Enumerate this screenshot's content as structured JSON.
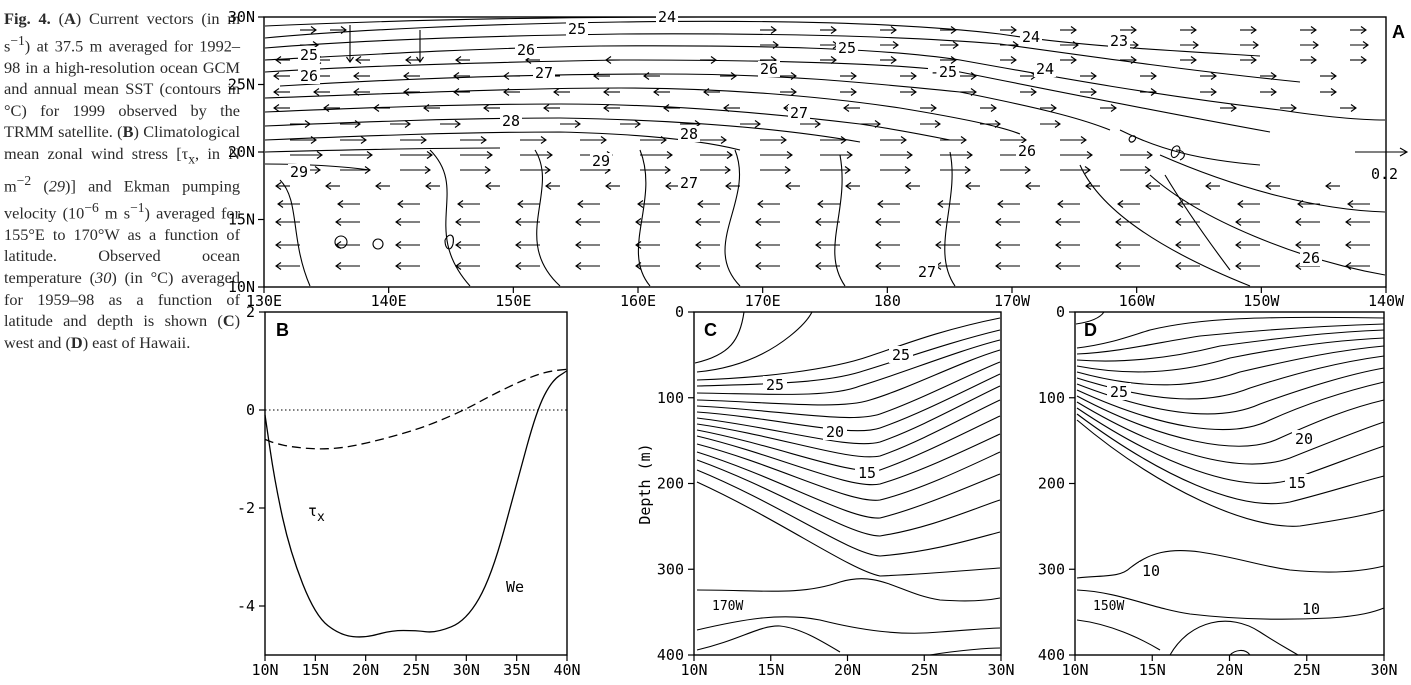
{
  "caption": {
    "fig": "Fig. 4.",
    "p1": " (",
    "A": "A",
    "p2": ") Current vectors (in m s",
    "sup1": "−1",
    "p3": ") at 37.5 m averaged for 1992–98 in a high-resolution ocean GCM and annual mean SST (contours in °C) for 1999 observed by the TRMM satellite. (",
    "B": "B",
    "p4": ") Climatological mean zonal wind stress [τ",
    "sub_x": "x",
    "p5": ", in N m",
    "sup2": "−2",
    "p6": " (",
    "ref29": "29",
    "p7": ")] and Ekman pumping velocity (10",
    "sup3": "−6",
    "p8": " m s",
    "sup4": "−1",
    "p9": ") averaged for 155°E to 170°W as a function of latitude. Observed ocean temperature (",
    "ref30": "30",
    "p10": ") (in °C) averaged for 1959–98 as a function of latitude and depth is shown (",
    "C": "C",
    "p11": ") west and (",
    "D": "D",
    "p12": ") east of Hawaii."
  },
  "panelA": {
    "label": "A",
    "yticks": [
      "30N",
      "25N",
      "20N",
      "15N",
      "10N"
    ],
    "xticks": [
      "130E",
      "140E",
      "150E",
      "160E",
      "170E",
      "180",
      "170W",
      "160W",
      "150W",
      "140W"
    ],
    "scale_label": "0.2",
    "contour_labels": [
      "24",
      "25",
      "26",
      "27",
      "25",
      "24",
      "23",
      "25",
      "26",
      "26",
      "-25",
      "24",
      "27",
      "28",
      "27",
      "28",
      "26",
      "29",
      "29",
      "26",
      "27"
    ]
  },
  "panelB": {
    "label": "B",
    "yticks": [
      "2",
      "0",
      "-2",
      "-4"
    ],
    "xticks": [
      "10N",
      "15N",
      "20N",
      "25N",
      "30N",
      "35N",
      "40N"
    ],
    "tau_label": "τ",
    "tau_sub": "x",
    "we_label": "We"
  },
  "panelC": {
    "label": "C",
    "yticks": [
      "0",
      "100",
      "200",
      "300",
      "400"
    ],
    "xticks": [
      "10N",
      "15N",
      "20N",
      "25N",
      "30N"
    ],
    "ylabel": "Depth (m)",
    "inset": "170W",
    "contour_labels": [
      "25",
      "25",
      "20",
      "15"
    ]
  },
  "panelD": {
    "label": "D",
    "yticks": [
      "0",
      "100",
      "200",
      "300",
      "400"
    ],
    "xticks": [
      "10N",
      "15N",
      "20N",
      "25N",
      "30N"
    ],
    "inset": "150W",
    "contour_labels": [
      "25",
      "20",
      "15",
      "10",
      "10"
    ]
  },
  "chart_data": [
    {
      "type": "line",
      "panel": "B",
      "x": [
        10,
        11,
        12.5,
        15,
        17.5,
        20,
        22.5,
        25,
        27,
        30,
        32.5,
        35,
        37,
        38.5,
        40
      ],
      "xlabel": "",
      "ylabel": "",
      "xlim": [
        10,
        40
      ],
      "ylim": [
        -5,
        2
      ],
      "series": [
        {
          "name": "We",
          "style": "solid",
          "values": [
            -0.1,
            -1.5,
            -2.9,
            -4.2,
            -4.6,
            -4.65,
            -4.5,
            -4.5,
            -4.55,
            -4.3,
            -3.4,
            -1.5,
            0.0,
            0.6,
            0.8
          ]
        },
        {
          "name": "τx",
          "style": "dashed",
          "values": [
            -0.6,
            -0.68,
            -0.75,
            -0.8,
            -0.78,
            -0.68,
            -0.55,
            -0.4,
            -0.25,
            0.02,
            0.3,
            0.55,
            0.72,
            0.8,
            0.83
          ]
        }
      ],
      "reference_line": {
        "y": 0,
        "style": "dotted"
      }
    }
  ]
}
